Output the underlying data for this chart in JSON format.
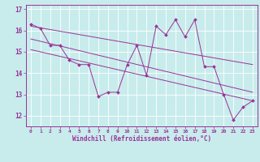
{
  "xlabel": "Windchill (Refroidissement éolien,°C)",
  "background_color": "#c8ecec",
  "line_color": "#993399",
  "xlim": [
    -0.5,
    23.5
  ],
  "ylim": [
    11.5,
    17.2
  ],
  "xticks": [
    0,
    1,
    2,
    3,
    4,
    5,
    6,
    7,
    8,
    9,
    10,
    11,
    12,
    13,
    14,
    15,
    16,
    17,
    18,
    19,
    20,
    21,
    22,
    23
  ],
  "yticks": [
    12,
    13,
    14,
    15,
    16
  ],
  "ytick_extra": 17,
  "series1": [
    16.3,
    16.1,
    15.3,
    15.3,
    14.6,
    14.4,
    14.4,
    12.9,
    13.1,
    13.1,
    14.4,
    15.3,
    13.9,
    16.2,
    15.8,
    16.5,
    15.7,
    16.5,
    14.3,
    14.3,
    13.0,
    11.8,
    12.4,
    12.7
  ],
  "series2_x": [
    0,
    23
  ],
  "series2_y": [
    16.2,
    14.4
  ],
  "series3_x": [
    0,
    23
  ],
  "series3_y": [
    15.6,
    13.1
  ],
  "series4_x": [
    0,
    23
  ],
  "series4_y": [
    15.1,
    12.7
  ]
}
